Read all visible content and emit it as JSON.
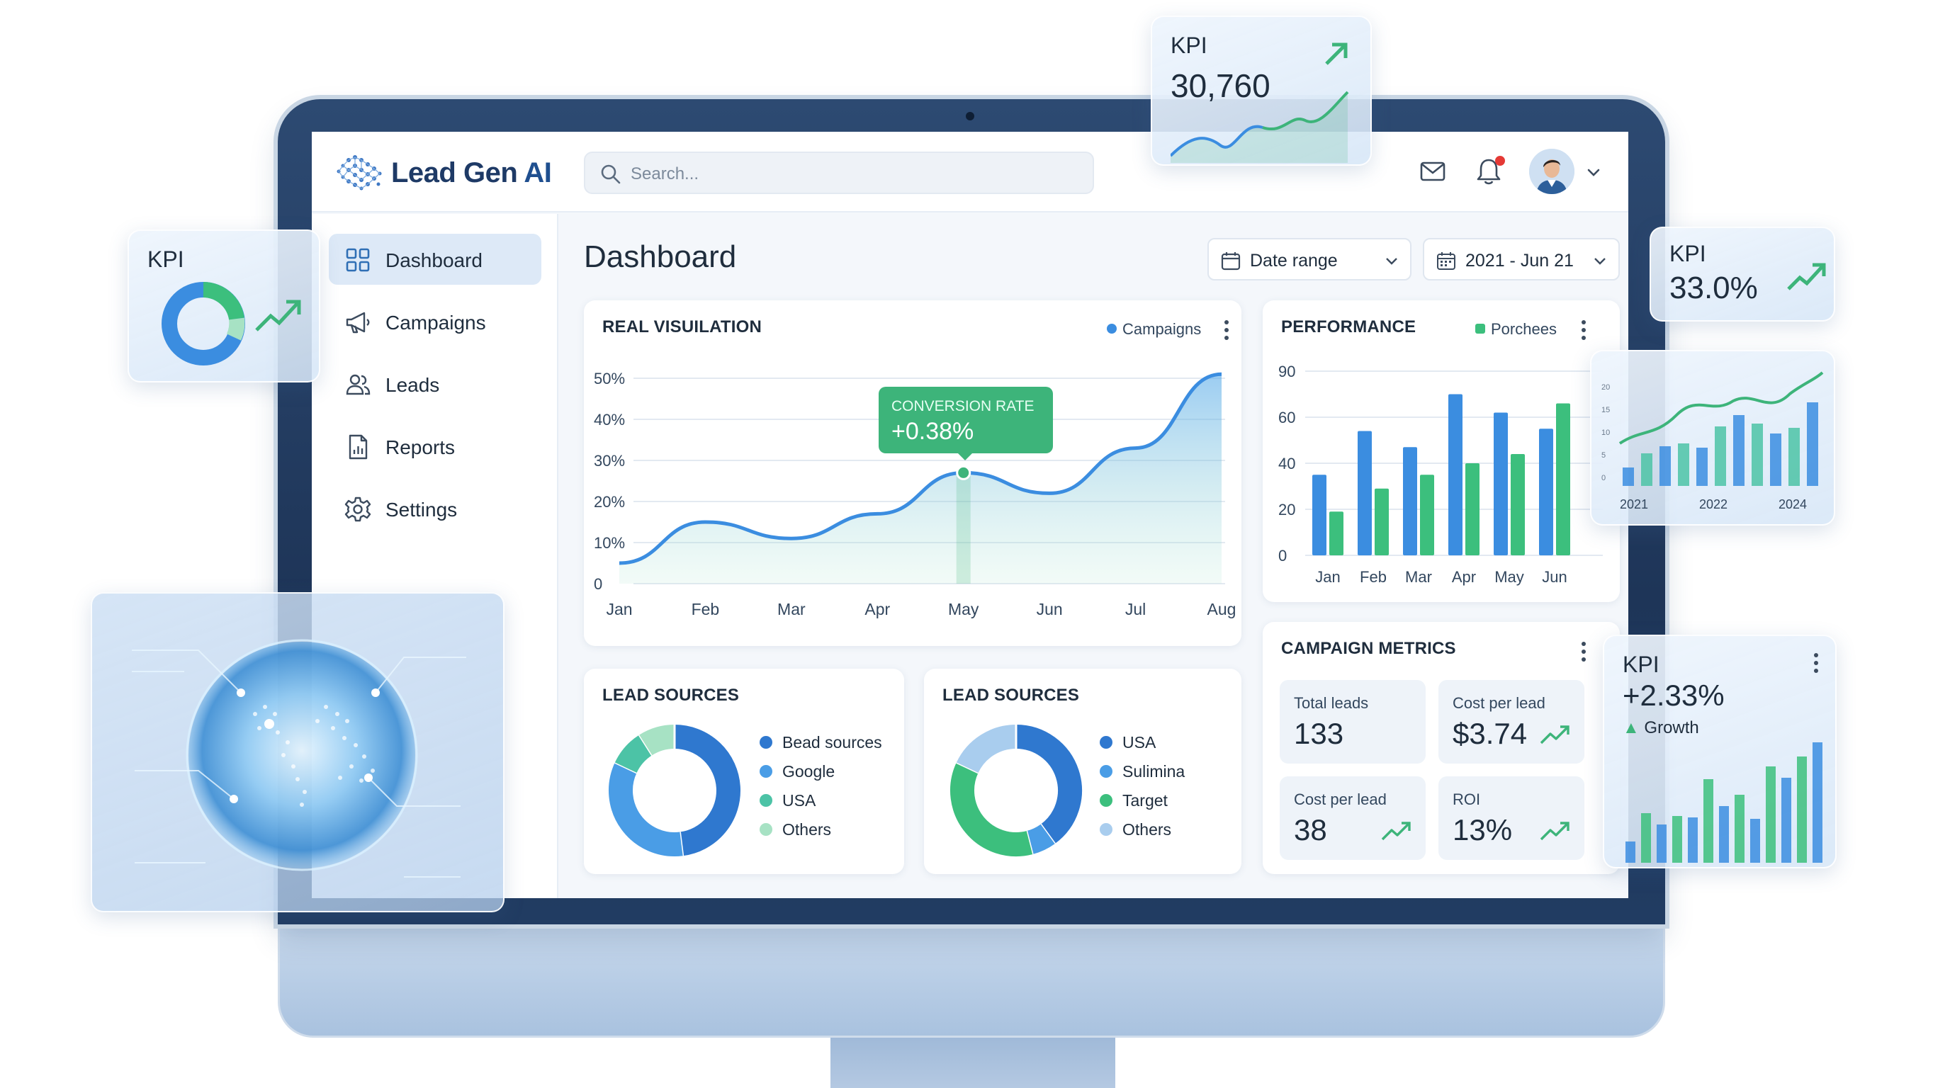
{
  "app": {
    "logo_text_a": "Lead Gen ",
    "logo_text_b": "AI"
  },
  "search": {
    "placeholder": "Search..."
  },
  "topbar": {
    "mail_icon": "mail-icon",
    "bell_icon": "bell-icon",
    "has_notification": true
  },
  "sidebar": {
    "items": [
      {
        "label": "Dashboard",
        "icon": "grid-icon",
        "active": true
      },
      {
        "label": "Campaigns",
        "icon": "megaphone-icon",
        "active": false
      },
      {
        "label": "Leads",
        "icon": "users-icon",
        "active": false
      },
      {
        "label": "Reports",
        "icon": "report-icon",
        "active": false
      },
      {
        "label": "Settings",
        "icon": "gear-icon",
        "active": false
      }
    ]
  },
  "main": {
    "title": "Dashboard",
    "date_range_label": "Date range",
    "date_value_label": "2021 - Jun 21"
  },
  "real_visualization": {
    "title": "REAL VISUILATION",
    "legend": "Campaigns",
    "tooltip_label": "CONVERSION RATE",
    "tooltip_value": "+0.38%",
    "y_ticks": [
      "50%",
      "40%",
      "30%",
      "20%",
      "10%",
      "0"
    ],
    "x_ticks": [
      "Jan",
      "Feb",
      "Mar",
      "Apr",
      "May",
      "Jun",
      "Jul",
      "Aug"
    ]
  },
  "performance": {
    "title": "PERFORMANCE",
    "legend": "Porchees",
    "y_ticks": [
      "90",
      "60",
      "40",
      "20",
      "0"
    ],
    "x_ticks": [
      "Jan",
      "Feb",
      "Mar",
      "Apr",
      "May",
      "Jun"
    ]
  },
  "lead_sources_1": {
    "title": "LEAD SOURCES",
    "legend": [
      "Bead sources",
      "Google",
      "USA",
      "Others"
    ]
  },
  "lead_sources_2": {
    "title": "LEAD SOURCES",
    "legend": [
      "USA",
      "Sulimina",
      "Target",
      "Others"
    ]
  },
  "campaign_metrics": {
    "title": "CAMPAIGN METRICS",
    "metrics": [
      {
        "label": "Total leads",
        "value": "133",
        "trend": false
      },
      {
        "label": "Cost per lead",
        "value": "$3.74",
        "trend": true
      },
      {
        "label": "Cost per lead",
        "value": "38",
        "trend": true
      },
      {
        "label": "ROI",
        "value": "13%",
        "trend": true
      }
    ]
  },
  "floating": {
    "kpi_top": {
      "title": "KPI",
      "value": "30,760"
    },
    "kpi_left": {
      "title": "KPI"
    },
    "kpi_right": {
      "title": "KPI",
      "value": "33.0%"
    },
    "mini_chart": {
      "y_ticks": [
        "20",
        "15",
        "10",
        "5",
        "0"
      ],
      "x_ticks": [
        "2021",
        "2022",
        "2024"
      ]
    },
    "kpi_growth": {
      "title": "KPI",
      "value": "+2.33%",
      "sub": "Growth"
    }
  },
  "colors": {
    "blue": "#3b8de0",
    "blue_dark": "#2f78cf",
    "green": "#3cbf7d",
    "teal": "#4cc3a6",
    "light_blue": "#a9cdee",
    "light_green": "#a7e2c4",
    "accent_green": "#3db47a"
  },
  "chart_data": [
    {
      "type": "area",
      "title": "REAL VISUILATION",
      "x": [
        "Jan",
        "Feb",
        "Mar",
        "Apr",
        "May",
        "Jun",
        "Jul",
        "Aug"
      ],
      "series": [
        {
          "name": "Campaigns",
          "values": [
            5,
            15,
            11,
            17,
            27,
            22,
            33,
            51
          ]
        }
      ],
      "ylim": [
        0,
        50
      ],
      "y_unit": "%",
      "annotation": {
        "x": "May",
        "label": "CONVERSION RATE",
        "value": "+0.38%"
      }
    },
    {
      "type": "bar",
      "title": "PERFORMANCE",
      "categories": [
        "Jan",
        "Feb",
        "Mar",
        "Apr",
        "May",
        "Jun"
      ],
      "series": [
        {
          "values": [
            35,
            54,
            47,
            75,
            63,
            55
          ]
        },
        {
          "name": "Porchees",
          "values": [
            19,
            29,
            35,
            40,
            44,
            69
          ]
        }
      ],
      "y_ticks": [
        0,
        20,
        40,
        60,
        90
      ]
    },
    {
      "type": "pie",
      "title": "LEAD SOURCES",
      "labels": [
        "Bead sources",
        "Google",
        "USA",
        "Others"
      ],
      "values": [
        48,
        34,
        9,
        9
      ]
    },
    {
      "type": "pie",
      "title": "LEAD SOURCES",
      "labels": [
        "USA",
        "Sulimina",
        "Target",
        "Others"
      ],
      "values": [
        40,
        6,
        36,
        18
      ]
    }
  ]
}
